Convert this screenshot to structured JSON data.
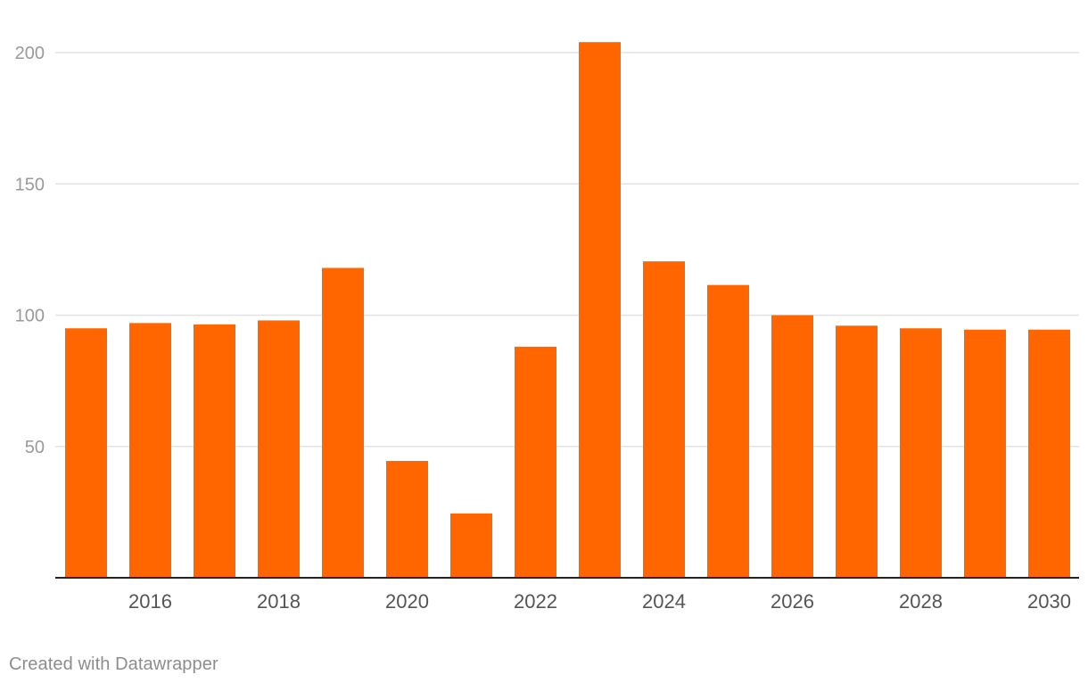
{
  "chart_data": {
    "type": "bar",
    "categories": [
      "2015",
      "2016",
      "2017",
      "2018",
      "2019",
      "2020",
      "2021",
      "2022",
      "2023",
      "2024",
      "2025",
      "2026",
      "2027",
      "2028",
      "2029",
      "2030"
    ],
    "values": [
      95,
      97,
      96.5,
      98,
      118,
      44.5,
      24.5,
      88,
      204,
      120.5,
      111.5,
      100,
      96,
      95,
      94.5,
      94.5
    ],
    "x_tick_labels": [
      "2016",
      "2018",
      "2020",
      "2022",
      "2024",
      "2026",
      "2028",
      "2030"
    ],
    "y_ticks": [
      50,
      100,
      150,
      200
    ],
    "ylim": [
      0,
      210
    ],
    "grid": true,
    "bar_color": "#ff6600",
    "gridline_color": "#e3e3e3",
    "axis_color": "#222222",
    "tick_label_color": "#9a9a9a",
    "x_tick_label_color": "#555555"
  },
  "footer": {
    "credit": "Created with Datawrapper"
  }
}
